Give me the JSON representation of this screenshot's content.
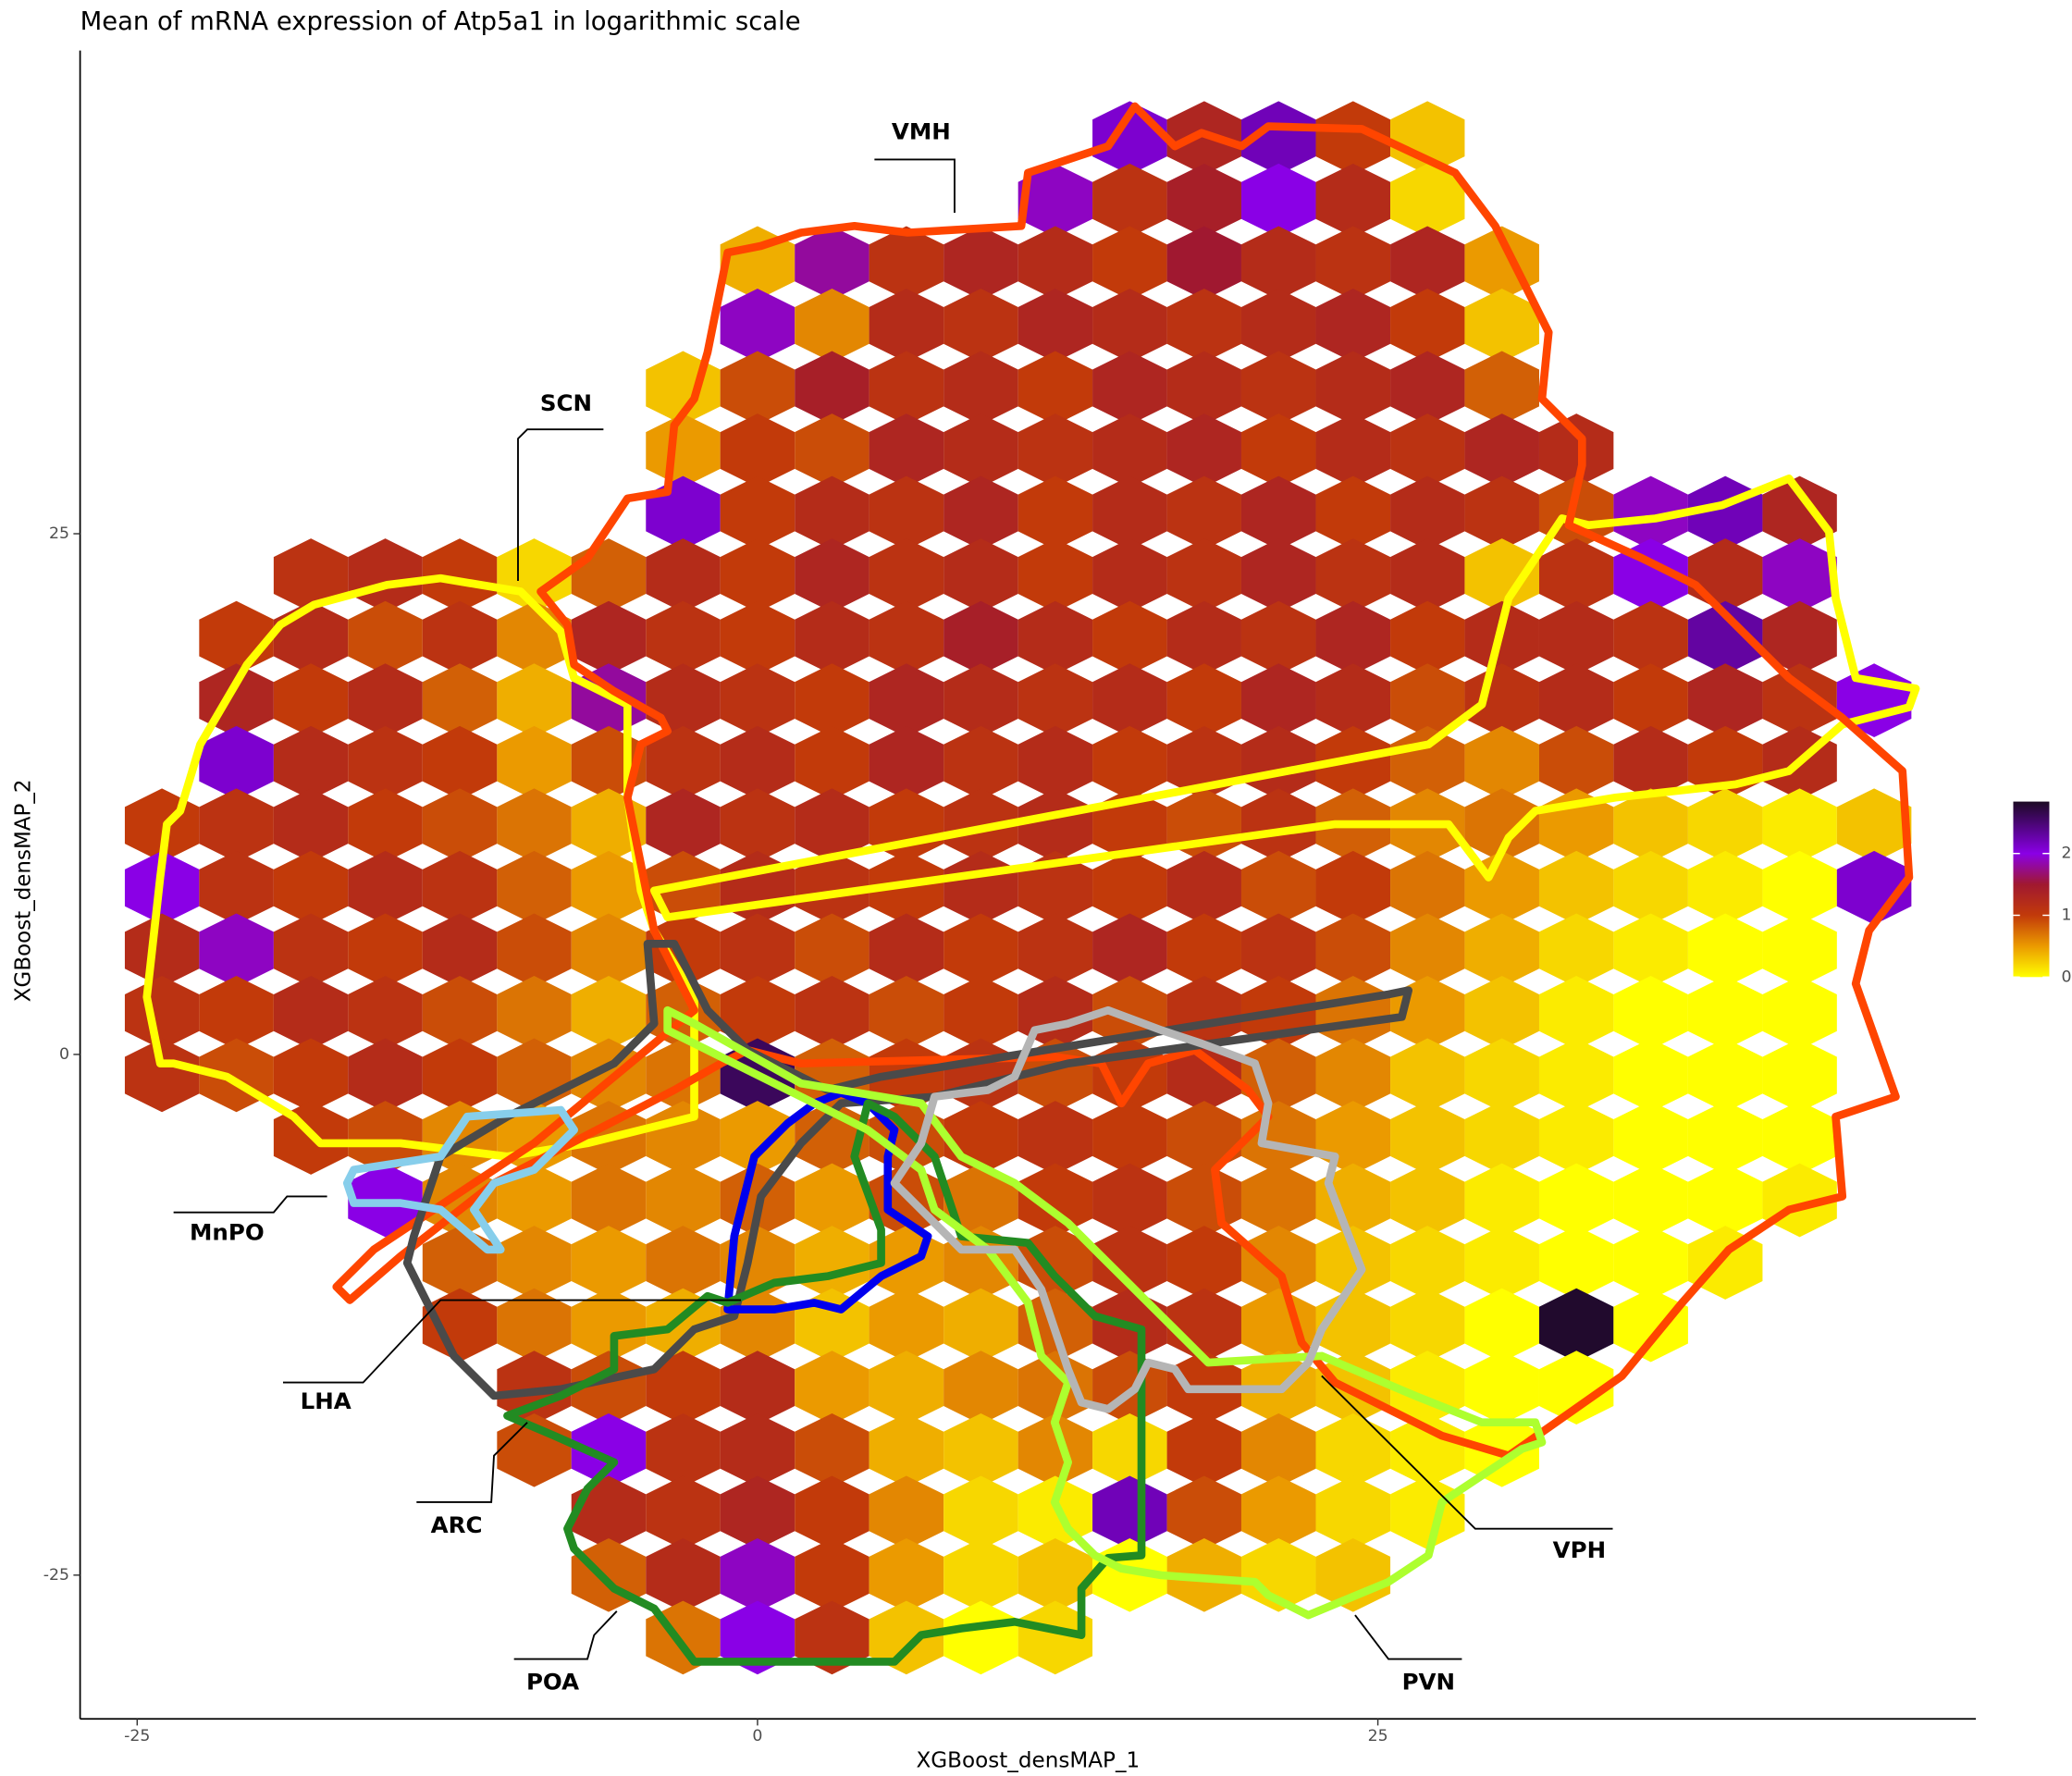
{
  "chart_data": {
    "type": "hexbin",
    "title": "Mean of mRNA expression of Atp5a1 in logarithmic scale",
    "x_label": "XGBoost_densMAP_1",
    "y_label": "XGBoost_densMAP_2",
    "xlim": [
      -27.3,
      49.1
    ],
    "ylim": [
      -31.9,
      48.2
    ],
    "xticks": [
      -25,
      0,
      25
    ],
    "yticks": [
      -25,
      0,
      25
    ],
    "x": [
      -24,
      -21,
      -18,
      -15,
      -12,
      -9,
      -6,
      -3,
      0,
      3,
      6,
      9,
      12,
      15,
      18,
      21,
      24,
      27,
      30,
      33,
      36,
      39,
      42,
      45
    ],
    "y": [
      44,
      41,
      38,
      35,
      32,
      29,
      26,
      23,
      20,
      17,
      14,
      11,
      8,
      5,
      2,
      -1,
      -4,
      -7,
      -10,
      -13,
      -16,
      -19,
      -22,
      -25,
      -28
    ],
    "values": [
      [
        null,
        null,
        null,
        null,
        null,
        null,
        null,
        null,
        null,
        null,
        null,
        null,
        null,
        2.1,
        1.3,
        2.2,
        1.0,
        0.3,
        null,
        null,
        null,
        null,
        null,
        null
      ],
      [
        null,
        null,
        null,
        null,
        null,
        null,
        null,
        null,
        null,
        null,
        null,
        null,
        1.9,
        1.1,
        1.4,
        2.0,
        1.2,
        0.2,
        null,
        null,
        null,
        null,
        null,
        null
      ],
      [
        null,
        null,
        null,
        null,
        null,
        null,
        null,
        null,
        0.4,
        1.8,
        1.1,
        1.3,
        1.2,
        1.0,
        1.5,
        1.2,
        1.1,
        1.3,
        0.5,
        null,
        null,
        null,
        null,
        null
      ],
      [
        null,
        null,
        null,
        null,
        null,
        null,
        null,
        null,
        1.9,
        0.6,
        1.2,
        1.1,
        1.3,
        1.2,
        1.1,
        1.2,
        1.3,
        1.0,
        0.3,
        null,
        null,
        null,
        null,
        null
      ],
      [
        null,
        null,
        null,
        null,
        null,
        null,
        null,
        0.3,
        0.9,
        1.4,
        1.1,
        1.2,
        1.0,
        1.3,
        1.2,
        1.1,
        1.2,
        1.3,
        0.8,
        null,
        null,
        null,
        null,
        null
      ],
      [
        null,
        null,
        null,
        null,
        null,
        null,
        null,
        0.5,
        1.0,
        0.9,
        1.3,
        1.2,
        1.1,
        1.2,
        1.3,
        1.0,
        1.2,
        1.1,
        1.3,
        1.2,
        null,
        null,
        null,
        null
      ],
      [
        null,
        null,
        null,
        null,
        null,
        null,
        null,
        2.1,
        1.0,
        1.2,
        1.1,
        1.3,
        1.0,
        1.2,
        1.1,
        1.3,
        1.0,
        1.2,
        1.1,
        0.9,
        1.9,
        2.2,
        1.3,
        null
      ],
      [
        null,
        null,
        1.1,
        1.2,
        1.0,
        0.2,
        0.8,
        1.2,
        1.0,
        1.3,
        1.1,
        1.2,
        1.0,
        1.2,
        1.1,
        1.3,
        1.1,
        1.2,
        0.3,
        1.1,
        2.0,
        1.2,
        1.9,
        null
      ],
      [
        null,
        1.0,
        1.2,
        0.9,
        1.1,
        0.6,
        1.3,
        1.1,
        1.0,
        1.2,
        1.1,
        1.4,
        1.2,
        1.0,
        1.2,
        1.1,
        1.3,
        1.0,
        1.2,
        1.2,
        1.1,
        2.3,
        1.3,
        null
      ],
      [
        null,
        1.3,
        1.0,
        1.2,
        0.8,
        0.4,
        1.8,
        1.2,
        1.1,
        1.0,
        1.3,
        1.2,
        1.1,
        1.2,
        1.0,
        1.3,
        1.2,
        0.9,
        1.1,
        1.2,
        1.0,
        1.3,
        1.1,
        2.0
      ],
      [
        null,
        2.1,
        1.2,
        1.1,
        1.0,
        0.5,
        0.9,
        1.1,
        1.2,
        1.0,
        1.3,
        1.1,
        1.2,
        1.0,
        1.1,
        1.2,
        1.0,
        0.8,
        0.6,
        0.9,
        1.2,
        1.0,
        1.2,
        null
      ],
      [
        1.0,
        1.1,
        1.2,
        1.0,
        0.9,
        0.7,
        0.4,
        1.3,
        1.1,
        1.2,
        1.0,
        1.1,
        1.2,
        1.0,
        0.9,
        1.1,
        0.8,
        0.6,
        0.7,
        0.5,
        0.3,
        0.2,
        0.1,
        0.3
      ],
      [
        2.0,
        1.1,
        1.0,
        1.2,
        1.1,
        0.8,
        0.5,
        0.9,
        1.2,
        1.1,
        1.0,
        1.2,
        1.1,
        1.0,
        1.2,
        0.9,
        1.0,
        0.7,
        0.5,
        0.3,
        0.2,
        0.1,
        0.0,
        2.1
      ],
      [
        1.2,
        1.9,
        1.1,
        1.0,
        1.2,
        0.9,
        0.6,
        1.0,
        1.1,
        0.9,
        1.2,
        1.0,
        1.1,
        1.3,
        1.0,
        1.1,
        0.9,
        0.6,
        0.4,
        0.2,
        0.1,
        0.0,
        0.0,
        null
      ],
      [
        1.1,
        1.0,
        1.2,
        1.1,
        0.9,
        0.7,
        0.4,
        0.8,
        1.0,
        1.1,
        0.9,
        1.0,
        1.2,
        0.9,
        1.1,
        1.0,
        0.7,
        0.5,
        0.3,
        0.1,
        0.0,
        0.0,
        0.0,
        null
      ],
      [
        1.1,
        0.9,
        1.0,
        1.2,
        1.0,
        0.8,
        0.6,
        0.7,
        2.6,
        0.8,
        1.0,
        1.1,
        0.9,
        1.0,
        1.2,
        0.8,
        0.6,
        0.3,
        0.2,
        0.1,
        0.0,
        0.0,
        0.0,
        null
      ],
      [
        null,
        null,
        1.0,
        0.9,
        0.6,
        0.5,
        0.7,
        0.6,
        0.5,
        0.8,
        0.9,
        1.0,
        1.1,
        1.0,
        0.9,
        0.7,
        0.5,
        0.3,
        0.2,
        0.1,
        0.0,
        0.0,
        0.0,
        null
      ],
      [
        null,
        null,
        null,
        2.0,
        0.6,
        0.5,
        0.7,
        0.6,
        0.8,
        0.5,
        0.9,
        0.7,
        1.0,
        1.1,
        0.9,
        0.7,
        0.4,
        0.3,
        0.1,
        0.0,
        0.0,
        0.0,
        0.1,
        null
      ],
      [
        null,
        null,
        null,
        null,
        0.8,
        0.6,
        0.5,
        0.7,
        0.6,
        0.4,
        0.5,
        0.6,
        0.9,
        1.1,
        1.0,
        0.6,
        0.3,
        0.2,
        0.1,
        0.0,
        0.0,
        0.1,
        null,
        null
      ],
      [
        null,
        null,
        null,
        null,
        1.0,
        0.7,
        0.5,
        0.4,
        0.6,
        0.3,
        0.5,
        0.4,
        0.8,
        1.2,
        1.1,
        0.5,
        0.3,
        0.2,
        0.0,
        2.8,
        0.0,
        null,
        null,
        null
      ],
      [
        null,
        null,
        null,
        null,
        null,
        1.1,
        0.9,
        1.0,
        1.2,
        0.5,
        0.4,
        0.6,
        0.7,
        0.9,
        1.0,
        0.4,
        0.3,
        0.1,
        0.0,
        0.0,
        null,
        null,
        null,
        null
      ],
      [
        null,
        null,
        null,
        null,
        null,
        0.9,
        2.0,
        1.1,
        1.2,
        0.9,
        0.4,
        0.3,
        0.6,
        0.2,
        1.0,
        0.6,
        0.2,
        0.1,
        0.0,
        null,
        null,
        null,
        null,
        null
      ],
      [
        null,
        null,
        null,
        null,
        null,
        null,
        1.2,
        1.1,
        1.3,
        1.0,
        0.6,
        0.2,
        0.1,
        2.2,
        0.9,
        0.5,
        0.2,
        0.1,
        null,
        null,
        null,
        null,
        null,
        null
      ],
      [
        null,
        null,
        null,
        null,
        null,
        null,
        0.8,
        1.2,
        1.9,
        1.0,
        0.5,
        0.2,
        0.3,
        0.0,
        0.4,
        0.2,
        0.3,
        null,
        null,
        null,
        null,
        null,
        null,
        null
      ],
      [
        null,
        null,
        null,
        null,
        null,
        null,
        null,
        0.7,
        2.0,
        1.1,
        0.3,
        0.0,
        0.2,
        null,
        null,
        null,
        null,
        null,
        null,
        null,
        null,
        null,
        null,
        null
      ]
    ],
    "colorbar": {
      "zlim": [
        0,
        2.84
      ],
      "ticks": [
        0,
        1,
        2
      ],
      "stops": [
        {
          "value": 0,
          "color": "#ffff00"
        },
        {
          "value": 0.5,
          "color": "#eb9a00"
        },
        {
          "value": 1.0,
          "color": "#c23a0a"
        },
        {
          "value": 1.5,
          "color": "#a01830"
        },
        {
          "value": 2.0,
          "color": "#8a00e6"
        },
        {
          "value": 2.84,
          "color": "#1c0a24"
        }
      ]
    },
    "annotations": [
      "VMH",
      "SCN",
      "MnPO",
      "LHA",
      "ARC",
      "POA",
      "PVN",
      "VPH"
    ]
  }
}
